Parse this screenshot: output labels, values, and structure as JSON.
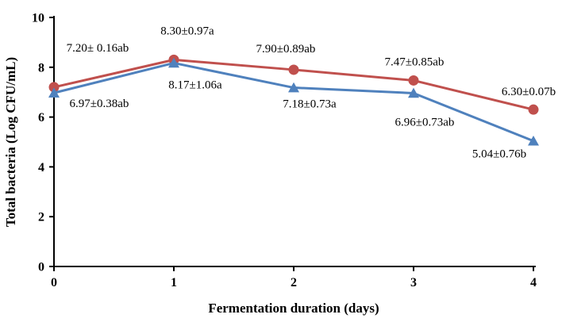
{
  "chart_data": {
    "type": "line",
    "title": "",
    "xlabel": "Fermentation duration (days)",
    "ylabel": "Total bacteria (Log CFU/mL)",
    "x": [
      0,
      1,
      2,
      3,
      4
    ],
    "xticks": [
      0,
      1,
      2,
      3,
      4
    ],
    "yticks": [
      0,
      2,
      4,
      6,
      8,
      10
    ],
    "xlim": [
      0,
      4
    ],
    "ylim": [
      0,
      10
    ],
    "grid": false,
    "legend_position": "none",
    "axis_color": "#000000",
    "series": [
      {
        "name": "red-series",
        "color": "#c0504d",
        "marker": "circle",
        "values": [
          7.2,
          8.3,
          7.9,
          7.47,
          6.3
        ],
        "labels": [
          "7.20± 0.16ab",
          "8.30±0.97a",
          "7.90±0.89ab",
          "7.47±0.85ab",
          "6.30±0.07b"
        ],
        "label_offsets": [
          [
            55,
            -45
          ],
          [
            17,
            -32
          ],
          [
            -10,
            -22
          ],
          [
            1,
            -19
          ],
          [
            -6,
            -18
          ]
        ]
      },
      {
        "name": "blue-series",
        "color": "#4f81bd",
        "marker": "triangle",
        "values": [
          6.97,
          8.17,
          7.18,
          6.96,
          5.04
        ],
        "labels": [
          "6.97±0.38ab",
          "8.17±1.06a",
          "7.18±0.73a",
          "6.96±0.73ab",
          "5.04±0.76b"
        ],
        "label_offsets": [
          [
            57,
            18
          ],
          [
            27,
            32
          ],
          [
            20,
            25
          ],
          [
            14,
            41
          ],
          [
            -43,
            21
          ]
        ]
      }
    ]
  }
}
